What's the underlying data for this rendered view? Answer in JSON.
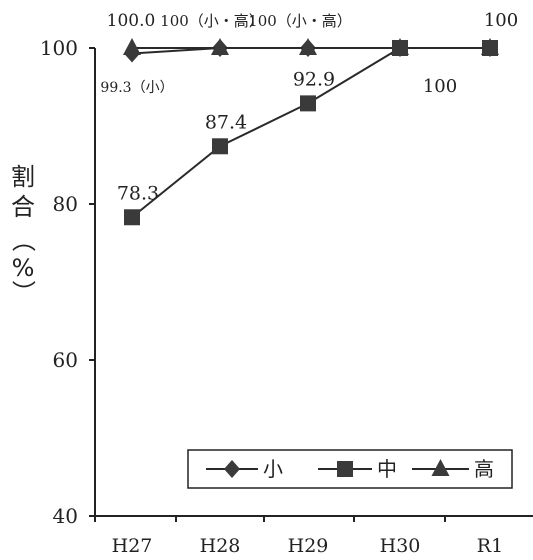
{
  "chart_data": {
    "type": "line",
    "categories": [
      "H27",
      "H28",
      "H29",
      "H30",
      "R1"
    ],
    "ylabel_chars": [
      "割",
      "合",
      "（",
      "%",
      "）"
    ],
    "yticks": [
      "40",
      "60",
      "80",
      "100"
    ],
    "ylim": [
      40,
      100
    ],
    "grid": false,
    "legend_position": "bottom-right",
    "series": [
      {
        "name": "小",
        "marker": "diamond",
        "values": [
          99.3,
          100,
          100,
          100,
          100
        ]
      },
      {
        "name": "中",
        "marker": "square",
        "values": [
          78.3,
          87.4,
          92.9,
          100,
          100
        ]
      },
      {
        "name": "高",
        "marker": "triangle",
        "values": [
          100,
          100,
          100,
          100,
          100
        ]
      }
    ],
    "annotations": [
      {
        "text": "100.0",
        "near_category": "H27",
        "near_value": 100,
        "placement": "above"
      },
      {
        "text": "99.3（小）",
        "near_category": "H27",
        "near_value": 99.3,
        "placement": "below"
      },
      {
        "text": "100（小・高）",
        "near_category": "H28",
        "near_value": 100,
        "placement": "above"
      },
      {
        "text": "100（小・高）",
        "near_category": "H29",
        "near_value": 100,
        "placement": "above"
      },
      {
        "text": "100",
        "near_category": "R1",
        "near_value": 100,
        "placement": "above"
      },
      {
        "text": "100",
        "near_category": "H30",
        "near_value": 100,
        "placement": "below-right"
      },
      {
        "text": "78.3",
        "near_category": "H27",
        "near_value": 78.3,
        "placement": "above"
      },
      {
        "text": "87.4",
        "near_category": "H28",
        "near_value": 87.4,
        "placement": "above"
      },
      {
        "text": "92.9",
        "near_category": "H29",
        "near_value": 92.9,
        "placement": "above"
      }
    ]
  },
  "colors": {
    "line": "#2a2a2a",
    "marker": "#3a3a3a",
    "axis": "#222222"
  }
}
